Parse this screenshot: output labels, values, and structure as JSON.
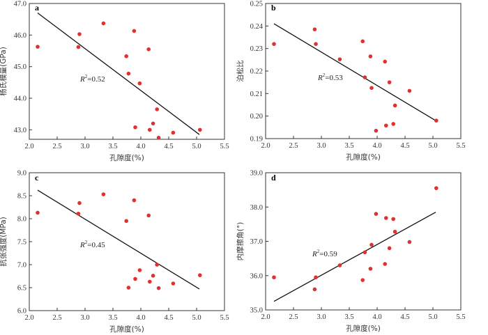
{
  "colors": {
    "point": "#e03030",
    "line": "#111111",
    "axis": "#333333"
  },
  "chart_data": [
    {
      "type": "scatter",
      "panel": "a",
      "xlabel": "孔隙度(%)",
      "ylabel": "杨氏模量(GPa)",
      "xlim": [
        2.0,
        5.5
      ],
      "ylim": [
        42.7,
        47.0
      ],
      "xticks": [
        "2.0",
        "2.5",
        "3.0",
        "3.5",
        "4.0",
        "4.5",
        "5.0",
        "5.5"
      ],
      "yticks": [
        "43.0",
        "44.0",
        "45.0",
        "46.0",
        "47.0"
      ],
      "ytick_values": [
        43,
        44,
        45,
        46,
        47
      ],
      "r2_prefix": "R",
      "r2_value": "=0.52",
      "fit": [
        [
          2.15,
          46.7
        ],
        [
          5.05,
          42.85
        ]
      ],
      "points": [
        [
          2.15,
          45.63
        ],
        [
          2.88,
          45.62
        ],
        [
          2.9,
          46.03
        ],
        [
          3.33,
          46.37
        ],
        [
          3.74,
          45.33
        ],
        [
          3.78,
          44.78
        ],
        [
          3.88,
          46.13
        ],
        [
          3.9,
          43.08
        ],
        [
          3.98,
          44.47
        ],
        [
          4.14,
          45.55
        ],
        [
          4.16,
          43.0
        ],
        [
          4.22,
          43.2
        ],
        [
          4.29,
          43.65
        ],
        [
          4.32,
          42.75
        ],
        [
          4.58,
          42.91
        ],
        [
          5.06,
          43.0
        ]
      ]
    },
    {
      "type": "scatter",
      "panel": "b",
      "xlabel": "孔隙度(%)",
      "ylabel": "泊松比",
      "xlim": [
        2.0,
        5.5
      ],
      "ylim": [
        0.19,
        0.25
      ],
      "xticks": [
        "2.0",
        "2.5",
        "3.0",
        "3.5",
        "4.0",
        "4.5",
        "5.0",
        "5.5"
      ],
      "yticks": [
        "0.19",
        "0.20",
        "0.21",
        "0.22",
        "0.23",
        "0.24",
        "0.25"
      ],
      "ytick_values": [
        0.19,
        0.2,
        0.21,
        0.22,
        0.23,
        0.24,
        0.25
      ],
      "r2_prefix": "R",
      "r2_value": "=0.53",
      "fit": [
        [
          2.15,
          0.241
        ],
        [
          5.05,
          0.198
        ]
      ],
      "points": [
        [
          2.15,
          0.232
        ],
        [
          2.88,
          0.2385
        ],
        [
          2.9,
          0.232
        ],
        [
          3.33,
          0.2252
        ],
        [
          3.74,
          0.2332
        ],
        [
          3.78,
          0.2172
        ],
        [
          3.88,
          0.2265
        ],
        [
          3.9,
          0.2125
        ],
        [
          3.98,
          0.1935
        ],
        [
          4.14,
          0.2242
        ],
        [
          4.16,
          0.1958
        ],
        [
          4.22,
          0.215
        ],
        [
          4.29,
          0.1965
        ],
        [
          4.32,
          0.2047
        ],
        [
          4.58,
          0.2112
        ],
        [
          5.06,
          0.198
        ]
      ]
    },
    {
      "type": "scatter",
      "panel": "c",
      "xlabel": "孔隙度(%)",
      "ylabel": "抗张强度(MPa)",
      "xlim": [
        2.0,
        5.5
      ],
      "ylim": [
        6.0,
        9.0
      ],
      "xticks": [
        "2.0",
        "2.5",
        "3.0",
        "3.5",
        "4.0",
        "4.5",
        "5.0",
        "5.5"
      ],
      "yticks": [
        "6.0",
        "6.5",
        "7.0",
        "7.5",
        "8.0",
        "8.5",
        "9.0"
      ],
      "ytick_values": [
        6.0,
        6.5,
        7.0,
        7.5,
        8.0,
        8.5,
        9.0
      ],
      "r2_prefix": "R",
      "r2_value": "=0.45",
      "fit": [
        [
          2.15,
          8.62
        ],
        [
          5.05,
          6.47
        ]
      ],
      "points": [
        [
          2.15,
          8.13
        ],
        [
          2.88,
          8.11
        ],
        [
          2.9,
          8.34
        ],
        [
          3.33,
          8.53
        ],
        [
          3.74,
          7.95
        ],
        [
          3.78,
          6.5
        ],
        [
          3.88,
          8.4
        ],
        [
          3.9,
          6.69
        ],
        [
          3.98,
          6.88
        ],
        [
          4.14,
          8.07
        ],
        [
          4.16,
          6.63
        ],
        [
          4.22,
          6.76
        ],
        [
          4.29,
          7.0
        ],
        [
          4.32,
          6.49
        ],
        [
          4.58,
          6.59
        ],
        [
          5.06,
          6.77
        ]
      ]
    },
    {
      "type": "scatter",
      "panel": "d",
      "xlabel": "孔隙度(%)",
      "ylabel": "内摩擦角(°)",
      "xlim": [
        2.0,
        5.5
      ],
      "ylim": [
        35.0,
        39.0
      ],
      "xticks": [
        "2.0",
        "2.5",
        "3.0",
        "3.5",
        "4.0",
        "4.5",
        "5.0",
        "5.5"
      ],
      "yticks": [
        "35.0",
        "36.0",
        "37.0",
        "38.0",
        "39.0"
      ],
      "ytick_values": [
        35,
        36,
        37,
        38,
        39
      ],
      "r2_prefix": "R",
      "r2_value": "=0.59",
      "fit": [
        [
          2.15,
          35.25
        ],
        [
          5.05,
          37.85
        ]
      ],
      "points": [
        [
          2.15,
          35.95
        ],
        [
          2.88,
          35.6
        ],
        [
          2.9,
          35.95
        ],
        [
          3.33,
          36.3
        ],
        [
          3.74,
          35.87
        ],
        [
          3.78,
          36.68
        ],
        [
          3.88,
          36.2
        ],
        [
          3.9,
          36.9
        ],
        [
          3.98,
          37.8
        ],
        [
          4.14,
          36.34
        ],
        [
          4.16,
          37.68
        ],
        [
          4.22,
          36.8
        ],
        [
          4.29,
          37.65
        ],
        [
          4.32,
          37.28
        ],
        [
          4.58,
          36.98
        ],
        [
          5.06,
          38.55
        ]
      ]
    }
  ]
}
